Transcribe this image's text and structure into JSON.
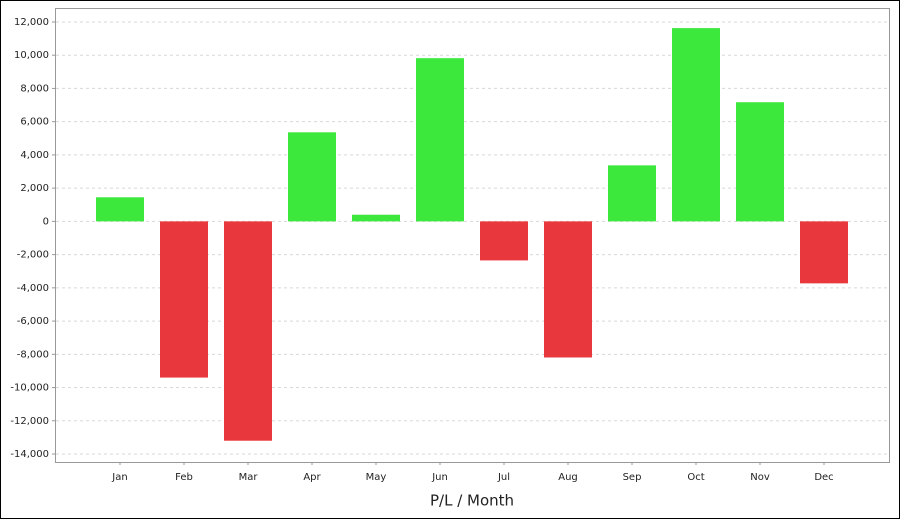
{
  "chart_data": {
    "type": "bar",
    "x_label": "P/L / Month",
    "categories": [
      "Jan",
      "Feb",
      "Mar",
      "Apr",
      "May",
      "Jun",
      "Jul",
      "Aug",
      "Sep",
      "Oct",
      "Nov",
      "Dec"
    ],
    "values": [
      1450,
      -9400,
      -13200,
      5360,
      400,
      9820,
      -2350,
      -8190,
      3370,
      11630,
      7170,
      -3730
    ],
    "positive_color": "#3de83d",
    "negative_color": "#e8383d",
    "ylim": [
      -14480,
      12840
    ],
    "yticks": [
      {
        "value": -14000,
        "label": "-14,000"
      },
      {
        "value": -12000,
        "label": "-12,000"
      },
      {
        "value": -10000,
        "label": "-10,000"
      },
      {
        "value": -8000,
        "label": "-8,000"
      },
      {
        "value": -6000,
        "label": "-6,000"
      },
      {
        "value": -4000,
        "label": "-4,000"
      },
      {
        "value": -2000,
        "label": "-2,000"
      },
      0,
      {
        "value": 2000,
        "label": "2,000"
      },
      {
        "value": 4000,
        "label": "4,000"
      },
      {
        "value": 6000,
        "label": "6,000"
      },
      {
        "value": 8000,
        "label": "8,000"
      },
      {
        "value": 10000,
        "label": "10,000"
      },
      {
        "value": 12000,
        "label": "12,000"
      }
    ],
    "grid": true
  }
}
